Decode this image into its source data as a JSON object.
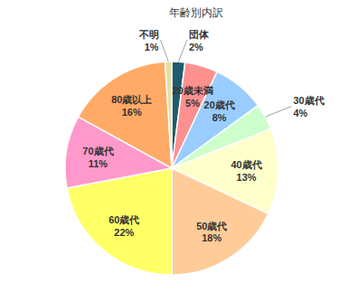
{
  "chart_data": {
    "type": "pie",
    "title": "年齢別内訳",
    "categories": [
      "団体",
      "20歳未満",
      "20歳代",
      "30歳代",
      "40歳代",
      "50歳代",
      "60歳代",
      "70歳代",
      "80歳以上",
      "不明"
    ],
    "values": [
      2,
      5,
      8,
      4,
      13,
      18,
      22,
      11,
      16,
      1
    ],
    "value_labels": [
      "2%",
      "5%",
      "8%",
      "4%",
      "13%",
      "18%",
      "22%",
      "11%",
      "16%",
      "1%"
    ],
    "colors": [
      "#1f5c6e",
      "#ff9090",
      "#99ccff",
      "#ccffcc",
      "#ffffcc",
      "#ffcc99",
      "#ffff66",
      "#ff99cc",
      "#ffaa66",
      "#e6e0a0"
    ],
    "data_labels": true
  }
}
